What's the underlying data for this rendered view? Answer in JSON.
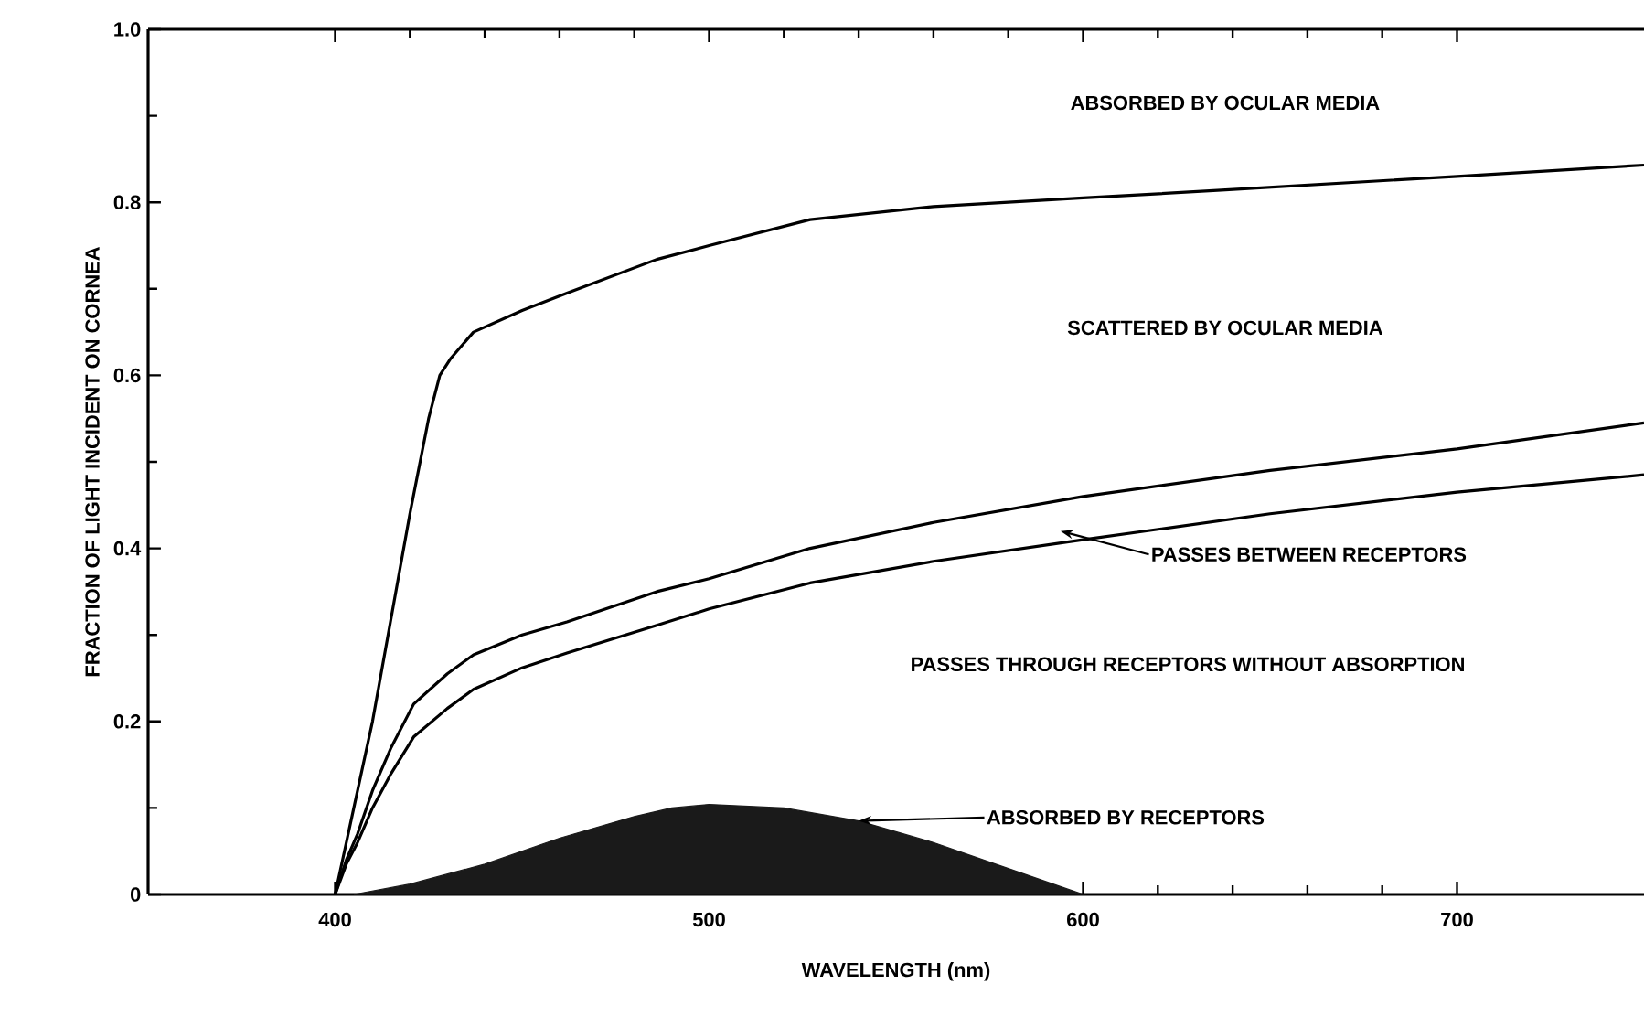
{
  "chart_data": {
    "type": "line",
    "xlabel": "WAVELENGTH (nm)",
    "ylabel": "FRACTION OF LIGHT INCIDENT ON CORNEA",
    "xlim": [
      350,
      750
    ],
    "xticks": [
      400,
      500,
      600,
      700
    ],
    "ylim": [
      0,
      1
    ],
    "yticks": [
      0,
      0.2,
      0.4,
      0.6,
      0.8,
      {
        "value": 1,
        "label": "1.0"
      }
    ],
    "series": [
      {
        "color": "#000000",
        "x": [
          400,
          405,
          410,
          415,
          420,
          425,
          428,
          431,
          437,
          450,
          462,
          486,
          500,
          527,
          560,
          600,
          637,
          700,
          750
        ],
        "values": [
          0,
          0.1,
          0.2,
          0.32,
          0.44,
          0.55,
          0.6,
          0.62,
          0.65,
          0.675,
          0.695,
          0.734,
          0.75,
          0.78,
          0.795,
          0.805,
          0.814,
          0.83,
          0.843
        ]
      },
      {
        "color": "#000000",
        "x": [
          400,
          403,
          406,
          410,
          415,
          421,
          430,
          437,
          450,
          462,
          486,
          500,
          527,
          560,
          600,
          650,
          700,
          750
        ],
        "values": [
          0,
          0.04,
          0.07,
          0.12,
          0.17,
          0.22,
          0.255,
          0.277,
          0.3,
          0.315,
          0.35,
          0.365,
          0.4,
          0.43,
          0.46,
          0.49,
          0.515,
          0.545
        ]
      },
      {
        "color": "#000000",
        "x": [
          400,
          403,
          406,
          410,
          415,
          421,
          430,
          437,
          450,
          462,
          486,
          500,
          527,
          560,
          600,
          650,
          700,
          750
        ],
        "values": [
          0,
          0.035,
          0.06,
          0.1,
          0.14,
          0.182,
          0.215,
          0.237,
          0.262,
          0.279,
          0.311,
          0.33,
          0.36,
          0.385,
          0.41,
          0.44,
          0.465,
          0.485
        ]
      },
      {
        "type": "area",
        "color": "#1a1a1a",
        "x": [
          405,
          420,
          440,
          460,
          480,
          490,
          500,
          520,
          540,
          560,
          580,
          600
        ],
        "values": [
          0,
          0.012,
          0.035,
          0.065,
          0.09,
          0.1,
          0.104,
          0.1,
          0.085,
          0.06,
          0.03,
          0
        ]
      }
    ],
    "annotations": [
      "ABSORBED BY OCULAR MEDIA",
      "SCATTERED BY OCULAR MEDIA",
      "PASSES THROUGH RECEPTORS WITHOUT ABSORPTION",
      "PASSES BETWEEN RECEPTORS",
      {
        "text": "ABSORBED BY RECEPTORS",
        "x": 540,
        "y": 0.085
      }
    ]
  }
}
